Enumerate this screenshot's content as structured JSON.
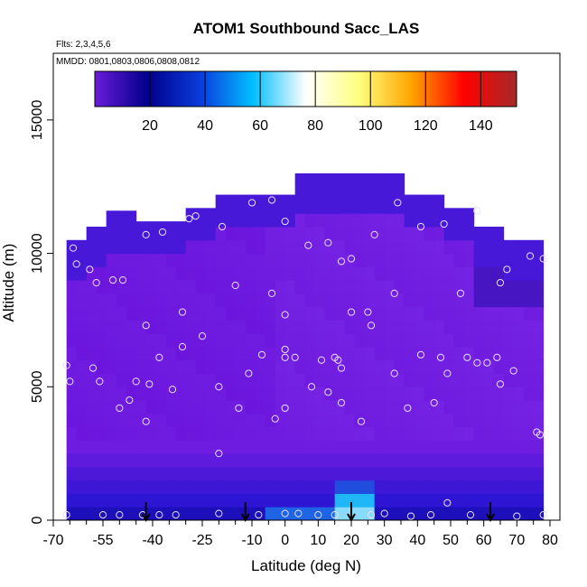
{
  "chart_data": {
    "type": "heatmap",
    "title": "ATOM1 Southbound Sacc_LAS",
    "subtitle_flights": "Flts: 2,3,4,5,6",
    "subtitle_dates": "MMDD: 0801,0803,0806,0808,0812",
    "xlabel": "Latitude (deg N)",
    "ylabel": "Altitude (m)",
    "xlim": [
      -70,
      83
    ],
    "ylim": [
      0,
      17500
    ],
    "x_ticks": [
      -70,
      -55,
      -40,
      -25,
      -10,
      0,
      10,
      20,
      30,
      40,
      50,
      60,
      70,
      80
    ],
    "x_minor_ticks": [
      -65,
      -60,
      -50,
      -45,
      -35,
      -30,
      -20,
      -15,
      -5,
      5,
      15,
      25,
      35,
      45,
      55,
      65,
      75
    ],
    "y_ticks": [
      0,
      5000,
      10000,
      15000
    ],
    "colorbar": {
      "min": 0,
      "max": 153,
      "ticks": [
        20,
        40,
        60,
        80,
        100,
        120,
        140
      ],
      "colors": [
        "#6a1bd8",
        "#00008b",
        "#0a3bdc",
        "#00bfff",
        "#ffffff",
        "#ffff80",
        "#ffa500",
        "#ff0000",
        "#a52a2a"
      ]
    },
    "legend_placement": "top",
    "grid": false,
    "markers": {
      "arrows_at_latitude": [
        -42,
        -12,
        20,
        62
      ],
      "observation_points": [
        [
          -66,
          200
        ],
        [
          -55,
          200
        ],
        [
          -50,
          200
        ],
        [
          -43,
          200
        ],
        [
          -38,
          200
        ],
        [
          -33,
          200
        ],
        [
          -20,
          250
        ],
        [
          -8,
          200
        ],
        [
          0,
          250
        ],
        [
          4,
          250
        ],
        [
          10,
          200
        ],
        [
          15,
          200
        ],
        [
          26,
          200
        ],
        [
          30,
          250
        ],
        [
          38,
          150
        ],
        [
          44,
          200
        ],
        [
          49,
          650
        ],
        [
          56,
          200
        ],
        [
          70,
          150
        ],
        [
          78,
          200
        ],
        [
          -64,
          10200
        ],
        [
          -63,
          9600
        ],
        [
          -59,
          9400
        ],
        [
          -57,
          8900
        ],
        [
          -52,
          9000
        ],
        [
          -49,
          9000
        ],
        [
          -42,
          10700
        ],
        [
          -37,
          10800
        ],
        [
          -29,
          11300
        ],
        [
          -27,
          11400
        ],
        [
          -19,
          11000
        ],
        [
          -10,
          11900
        ],
        [
          -4,
          12000
        ],
        [
          0,
          11200
        ],
        [
          7,
          10300
        ],
        [
          13,
          10400
        ],
        [
          17,
          9700
        ],
        [
          20,
          9800
        ],
        [
          27,
          10700
        ],
        [
          34,
          11900
        ],
        [
          41,
          11000
        ],
        [
          48,
          11100
        ],
        [
          58,
          11600
        ],
        [
          67,
          9400
        ],
        [
          74,
          9900
        ],
        [
          78,
          9800
        ],
        [
          -66,
          5800
        ],
        [
          -65,
          5200
        ],
        [
          -58,
          5700
        ],
        [
          -56,
          5200
        ],
        [
          -50,
          4200
        ],
        [
          -47,
          4500
        ],
        [
          -45,
          5200
        ],
        [
          -41,
          5100
        ],
        [
          -38,
          6100
        ],
        [
          -34,
          4900
        ],
        [
          -31,
          6500
        ],
        [
          -25,
          6900
        ],
        [
          -20,
          5000
        ],
        [
          -14,
          4200
        ],
        [
          -11,
          5500
        ],
        [
          -7,
          6200
        ],
        [
          -3,
          3800
        ],
        [
          0,
          6400
        ],
        [
          0,
          6100
        ],
        [
          0,
          4200
        ],
        [
          3,
          6100
        ],
        [
          8,
          5000
        ],
        [
          11,
          6000
        ],
        [
          13,
          4800
        ],
        [
          15,
          6100
        ],
        [
          17,
          4400
        ],
        [
          17,
          5700
        ],
        [
          20,
          7800
        ],
        [
          23,
          3700
        ],
        [
          26,
          7300
        ],
        [
          33,
          5500
        ],
        [
          37,
          4200
        ],
        [
          41,
          6200
        ],
        [
          45,
          4400
        ],
        [
          47,
          6100
        ],
        [
          49,
          5500
        ],
        [
          55,
          6100
        ],
        [
          58,
          5900
        ],
        [
          61,
          5900
        ],
        [
          64,
          6100
        ],
        [
          65,
          5100
        ],
        [
          69,
          5600
        ],
        [
          76,
          3300
        ],
        [
          77,
          3200
        ],
        [
          -42,
          7300
        ],
        [
          -31,
          7800
        ],
        [
          -15,
          8800
        ],
        [
          -4,
          8500
        ],
        [
          0,
          7700
        ],
        [
          16,
          6000
        ],
        [
          25,
          7800
        ],
        [
          33,
          8500
        ],
        [
          53,
          8500
        ],
        [
          65,
          8900
        ],
        [
          -42,
          3700
        ],
        [
          -20,
          2500
        ]
      ]
    }
  }
}
